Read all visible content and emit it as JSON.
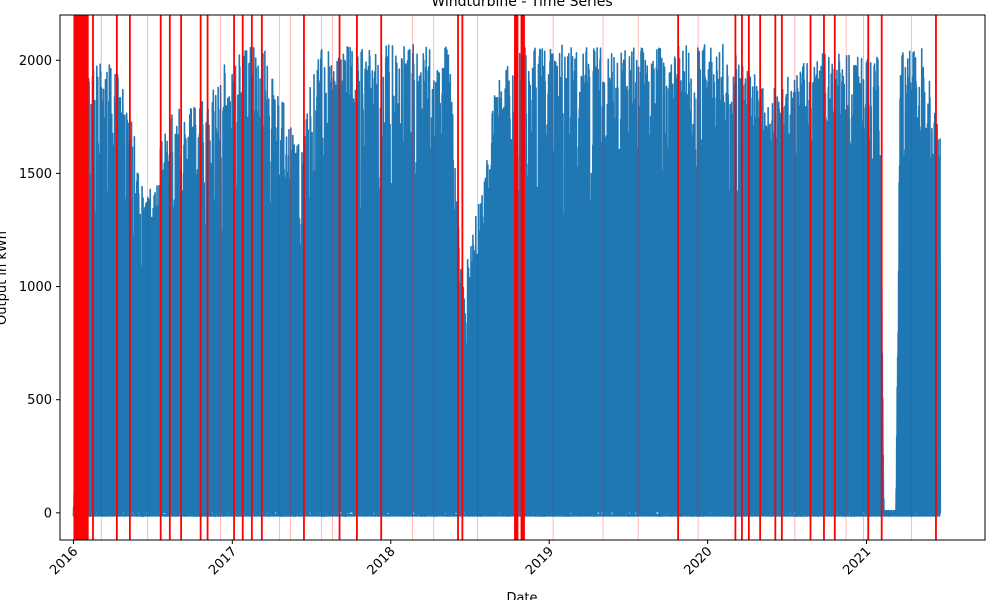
{
  "chart_data": {
    "type": "line",
    "title": "Windturbine - Time Series",
    "xlabel": "Date",
    "ylabel": "Output in kWh",
    "x_ticks": [
      "2016",
      "2017",
      "2018",
      "2019",
      "2020",
      "2021"
    ],
    "y_ticks": [
      0,
      500,
      1000,
      1500,
      2000
    ],
    "xlim": [
      "2015-12-01",
      "2021-10-01"
    ],
    "ylim": [
      -120,
      2200
    ],
    "grid": false,
    "series": [
      {
        "color": "#1f77b4",
        "envelope": [
          [
            "2016-01-01",
            0
          ],
          [
            "2016-02-01",
            1950
          ],
          [
            "2016-03-15",
            2000
          ],
          [
            "2016-05-01",
            1900
          ],
          [
            "2016-06-15",
            1400
          ],
          [
            "2016-08-01",
            1750
          ],
          [
            "2016-09-15",
            1800
          ],
          [
            "2016-11-01",
            1850
          ],
          [
            "2016-12-15",
            2000
          ],
          [
            "2017-02-01",
            2070
          ],
          [
            "2017-03-15",
            2060
          ],
          [
            "2017-05-01",
            1800
          ],
          [
            "2017-06-01",
            1620
          ],
          [
            "2017-07-15",
            2050
          ],
          [
            "2017-09-15",
            2060
          ],
          [
            "2017-11-15",
            2070
          ],
          [
            "2018-01-15",
            2075
          ],
          [
            "2018-03-15",
            2070
          ],
          [
            "2018-05-15",
            2060
          ],
          [
            "2018-06-15",
            1000
          ],
          [
            "2018-07-15",
            1300
          ],
          [
            "2018-09-01",
            1900
          ],
          [
            "2018-10-20",
            2050
          ],
          [
            "2018-12-15",
            2070
          ],
          [
            "2019-02-15",
            2070
          ],
          [
            "2019-04-15",
            2065
          ],
          [
            "2019-06-15",
            2060
          ],
          [
            "2019-08-15",
            2060
          ],
          [
            "2019-10-15",
            2065
          ],
          [
            "2019-12-15",
            2070
          ],
          [
            "2020-02-15",
            2070
          ],
          [
            "2020-04-15",
            1950
          ],
          [
            "2020-06-15",
            1900
          ],
          [
            "2020-08-15",
            2000
          ],
          [
            "2020-10-15",
            2060
          ],
          [
            "2020-12-15",
            2065
          ],
          [
            "2021-01-31",
            2060
          ],
          [
            "2021-02-10",
            10
          ],
          [
            "2021-03-10",
            10
          ],
          [
            "2021-03-20",
            2065
          ],
          [
            "2021-05-10",
            2060
          ],
          [
            "2021-06-20",
            1700
          ]
        ]
      }
    ],
    "anomaly_markers": {
      "color": "#ff0000",
      "dense_ranges": [
        [
          "2016-01-01",
          "2016-02-05"
        ],
        [
          "2018-10-12",
          "2018-10-22"
        ],
        [
          "2018-10-27",
          "2018-11-06"
        ]
      ],
      "dates": [
        "2016-02-15",
        "2016-04-10",
        "2016-05-10",
        "2016-07-20",
        "2016-08-10",
        "2016-09-05",
        "2016-10-20",
        "2016-11-05",
        "2017-01-05",
        "2017-01-25",
        "2017-02-15",
        "2017-03-10",
        "2017-06-15",
        "2017-09-05",
        "2017-10-15",
        "2017-12-10",
        "2018-06-05",
        "2018-06-15",
        "2019-10-25",
        "2020-03-05",
        "2020-03-20",
        "2020-04-05",
        "2020-05-01",
        "2020-06-05",
        "2020-06-20",
        "2020-08-25",
        "2020-09-25",
        "2020-10-20",
        "2021-01-05",
        "2021-02-05",
        "2021-06-10"
      ],
      "faint_dates": [
        "2016-03-05",
        "2016-06-20",
        "2016-12-05",
        "2017-04-20",
        "2017-05-15",
        "2017-07-25",
        "2017-08-20",
        "2018-02-20",
        "2018-04-10",
        "2018-07-20",
        "2019-01-10",
        "2019-05-05",
        "2019-07-25",
        "2019-12-10",
        "2020-07-20",
        "2020-11-15",
        "2020-12-25",
        "2021-04-15"
      ]
    }
  }
}
